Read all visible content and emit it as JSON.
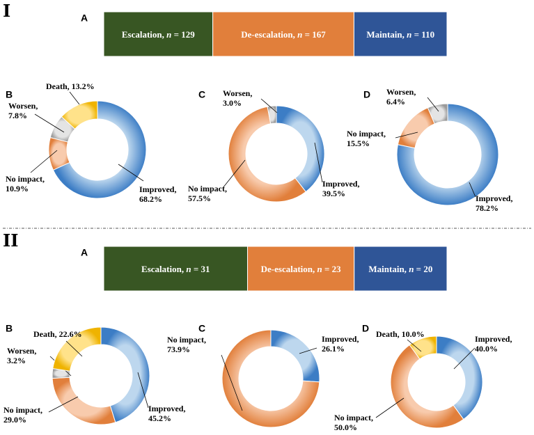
{
  "sections": [
    {
      "roman": "I",
      "bar": {
        "panel": "A",
        "segments": [
          {
            "label_main": "Escalation, ",
            "label_n": "n",
            "label_val": " = 129",
            "value": 129,
            "color": "#385623"
          },
          {
            "label_main": "De-escalation, ",
            "label_n": "n",
            "label_val": " = 167",
            "value": 167,
            "color": "#e17f3b"
          },
          {
            "label_main": "Maintain, ",
            "label_n": "n",
            "label_val": " = 110",
            "value": 110,
            "color": "#2f5597"
          }
        ]
      },
      "donuts": [
        {
          "panel": "B",
          "slices": [
            {
              "name": "Improved",
              "value": 68.2,
              "label1": "Improved,",
              "label2": "68.2%"
            },
            {
              "name": "No impact",
              "value": 10.9,
              "label1": "No impact,",
              "label2": "10.9%"
            },
            {
              "name": "Worsen",
              "value": 7.8,
              "label1": "Worsen,",
              "label2": "7.8%"
            },
            {
              "name": "Death",
              "value": 13.2,
              "label1": "Death, 13.2%",
              "label2": ""
            }
          ]
        },
        {
          "panel": "C",
          "slices": [
            {
              "name": "Improved",
              "value": 39.5,
              "label1": "Improved,",
              "label2": "39.5%"
            },
            {
              "name": "No impact",
              "value": 57.5,
              "label1": "No impact,",
              "label2": "57.5%"
            },
            {
              "name": "Worsen",
              "value": 3.0,
              "label1": "Worsen,",
              "label2": "3.0%"
            }
          ]
        },
        {
          "panel": "D",
          "slices": [
            {
              "name": "Improved",
              "value": 78.2,
              "label1": "Improved,",
              "label2": "78.2%"
            },
            {
              "name": "No impact",
              "value": 15.5,
              "label1": "No impact,",
              "label2": "15.5%"
            },
            {
              "name": "Worsen",
              "value": 6.4,
              "label1": "Worsen,",
              "label2": "6.4%"
            }
          ]
        }
      ]
    },
    {
      "roman": "II",
      "bar": {
        "panel": "A",
        "segments": [
          {
            "label_main": "Escalation, ",
            "label_n": "n",
            "label_val": " = 31",
            "value": 31,
            "color": "#385623"
          },
          {
            "label_main": "De-escalation, ",
            "label_n": "n",
            "label_val": " = 23",
            "value": 23,
            "color": "#e17f3b"
          },
          {
            "label_main": "Maintain, ",
            "label_n": "n",
            "label_val": " = 20",
            "value": 20,
            "color": "#2f5597"
          }
        ]
      },
      "donuts": [
        {
          "panel": "B",
          "slices": [
            {
              "name": "Improved",
              "value": 45.2,
              "label1": "Improved,",
              "label2": "45.2%"
            },
            {
              "name": "No impact",
              "value": 29.0,
              "label1": "No impact,",
              "label2": "29.0%"
            },
            {
              "name": "Worsen",
              "value": 3.2,
              "label1": "Worsen,",
              "label2": "3.2%"
            },
            {
              "name": "Death",
              "value": 22.6,
              "label1": "Death, 22.6%",
              "label2": ""
            }
          ]
        },
        {
          "panel": "C",
          "slices": [
            {
              "name": "Improved",
              "value": 26.1,
              "label1": "Improved,",
              "label2": "26.1%"
            },
            {
              "name": "No impact",
              "value": 73.9,
              "label1": "No impact,",
              "label2": "73.9%"
            }
          ]
        },
        {
          "panel": "D",
          "slices": [
            {
              "name": "Improved",
              "value": 40.0,
              "label1": "Improved,",
              "label2": "40.0%"
            },
            {
              "name": "No impact",
              "value": 50.0,
              "label1": "No impact,",
              "label2": "50.0%"
            },
            {
              "name": "Death",
              "value": 10.0,
              "label1": "Death, 10.0%",
              "label2": ""
            }
          ]
        }
      ]
    }
  ],
  "colors": {
    "Improved": [
      "#bdd7ee",
      "#3c7dc5"
    ],
    "No impact": [
      "#f8cbad",
      "#e17f3b"
    ],
    "Worsen": [
      "#e4e4e4",
      "#9a9a9a"
    ],
    "Death": [
      "#ffe28a",
      "#efb300"
    ]
  },
  "chart_data": [
    {
      "type": "bar",
      "title": "I A",
      "stacked": true,
      "categories": [
        "Escalation",
        "De-escalation",
        "Maintain"
      ],
      "values": [
        129,
        167,
        110
      ]
    },
    {
      "type": "pie",
      "title": "I B",
      "categories": [
        "Improved",
        "No impact",
        "Worsen",
        "Death"
      ],
      "values": [
        68.2,
        10.9,
        7.8,
        13.2
      ]
    },
    {
      "type": "pie",
      "title": "I C",
      "categories": [
        "Improved",
        "No impact",
        "Worsen"
      ],
      "values": [
        39.5,
        57.5,
        3.0
      ]
    },
    {
      "type": "pie",
      "title": "I D",
      "categories": [
        "Improved",
        "No impact",
        "Worsen"
      ],
      "values": [
        78.2,
        15.5,
        6.4
      ]
    },
    {
      "type": "bar",
      "title": "II A",
      "stacked": true,
      "categories": [
        "Escalation",
        "De-escalation",
        "Maintain"
      ],
      "values": [
        31,
        23,
        20
      ]
    },
    {
      "type": "pie",
      "title": "II B",
      "categories": [
        "Improved",
        "No impact",
        "Worsen",
        "Death"
      ],
      "values": [
        45.2,
        29.0,
        3.2,
        22.6
      ]
    },
    {
      "type": "pie",
      "title": "II C",
      "categories": [
        "Improved",
        "No impact"
      ],
      "values": [
        26.1,
        73.9
      ]
    },
    {
      "type": "pie",
      "title": "II D",
      "categories": [
        "Improved",
        "No impact",
        "Death"
      ],
      "values": [
        40.0,
        50.0,
        10.0
      ]
    }
  ]
}
